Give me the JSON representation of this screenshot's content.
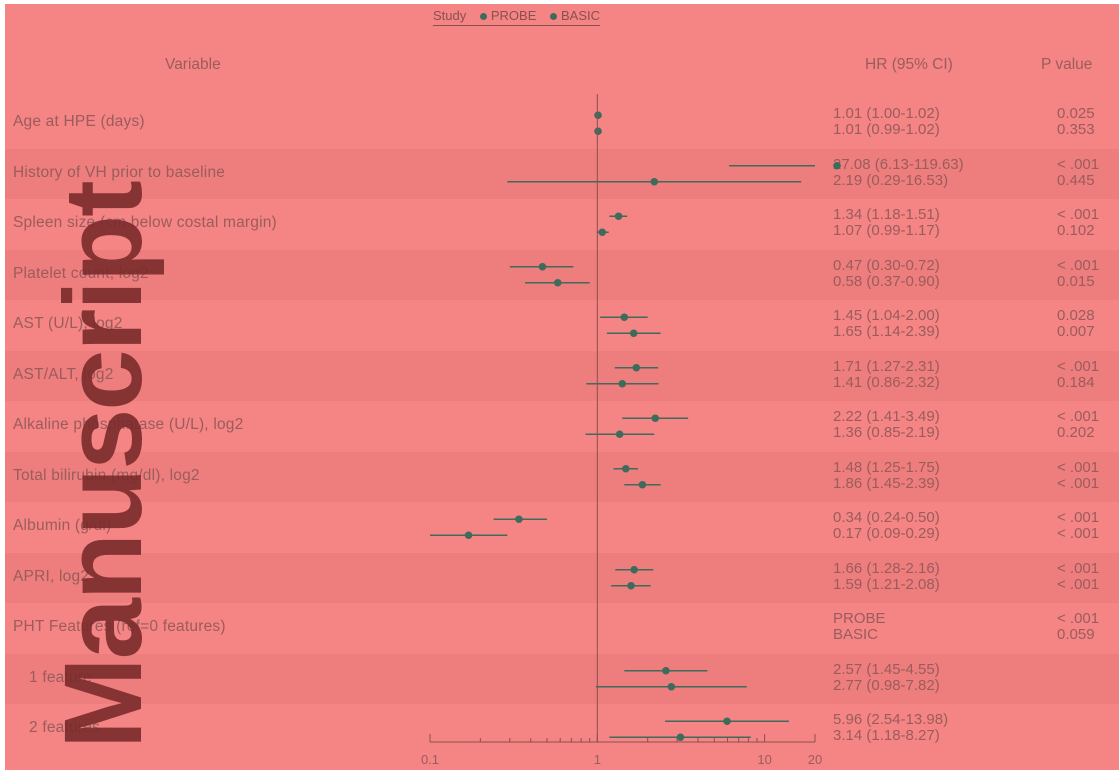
{
  "legend": {
    "title": "Study",
    "items": [
      "PROBE",
      "BASIC"
    ]
  },
  "headers": {
    "variable": "Variable",
    "hr": "HR (95% CI)",
    "pvalue": "P value"
  },
  "watermark": "Manuscript",
  "colors": {
    "background": "#f58484",
    "band": "#ee7d7d",
    "marker": "#3f6b5c",
    "text": "#9a5c5c"
  },
  "chart_data": {
    "type": "forest",
    "xscale": "log",
    "xlim": [
      0.1,
      20
    ],
    "xticks": [
      0.1,
      1,
      10,
      20
    ],
    "xtick_labels": [
      "0.1",
      "1",
      "10",
      "20"
    ],
    "reference_line": 1,
    "series": [
      {
        "name": "PROBE"
      },
      {
        "name": "BASIC"
      }
    ],
    "rows": [
      {
        "label": "Age at HPE (days)",
        "band": false,
        "estimates": [
          {
            "hr": 1.01,
            "lo": 1.0,
            "hi": 1.02,
            "text": "1.01 (1.00-1.02)",
            "p": "0.025"
          },
          {
            "hr": 1.01,
            "lo": 0.99,
            "hi": 1.02,
            "text": "1.01 (0.99-1.02)",
            "p": "0.353"
          }
        ]
      },
      {
        "label": "History of VH prior to baseline",
        "band": true,
        "estimates": [
          {
            "hr": 27.08,
            "lo": 6.13,
            "hi": 119.63,
            "text": "27.08 (6.13-119.63)",
            "p": "< .001"
          },
          {
            "hr": 2.19,
            "lo": 0.29,
            "hi": 16.53,
            "text": "2.19 (0.29-16.53)",
            "p": "0.445"
          }
        ]
      },
      {
        "label": "Spleen size (cm below costal margin)",
        "band": false,
        "estimates": [
          {
            "hr": 1.34,
            "lo": 1.18,
            "hi": 1.51,
            "text": "1.34 (1.18-1.51)",
            "p": "< .001"
          },
          {
            "hr": 1.07,
            "lo": 0.99,
            "hi": 1.17,
            "text": "1.07 (0.99-1.17)",
            "p": "0.102"
          }
        ]
      },
      {
        "label": "Platelet count, log2",
        "band": true,
        "estimates": [
          {
            "hr": 0.47,
            "lo": 0.3,
            "hi": 0.72,
            "text": "0.47 (0.30-0.72)",
            "p": "< .001"
          },
          {
            "hr": 0.58,
            "lo": 0.37,
            "hi": 0.9,
            "text": "0.58 (0.37-0.90)",
            "p": "0.015"
          }
        ]
      },
      {
        "label": "AST (U/L), log2",
        "band": false,
        "estimates": [
          {
            "hr": 1.45,
            "lo": 1.04,
            "hi": 2.0,
            "text": "1.45 (1.04-2.00)",
            "p": "0.028"
          },
          {
            "hr": 1.65,
            "lo": 1.14,
            "hi": 2.39,
            "text": "1.65 (1.14-2.39)",
            "p": "0.007"
          }
        ]
      },
      {
        "label": "AST/ALT, log2",
        "band": true,
        "estimates": [
          {
            "hr": 1.71,
            "lo": 1.27,
            "hi": 2.31,
            "text": "1.71 (1.27-2.31)",
            "p": "< .001"
          },
          {
            "hr": 1.41,
            "lo": 0.86,
            "hi": 2.32,
            "text": "1.41 (0.86-2.32)",
            "p": "0.184"
          }
        ]
      },
      {
        "label": "Alkaline phosphatase (U/L), log2",
        "band": false,
        "estimates": [
          {
            "hr": 2.22,
            "lo": 1.41,
            "hi": 3.49,
            "text": "2.22 (1.41-3.49)",
            "p": "< .001"
          },
          {
            "hr": 1.36,
            "lo": 0.85,
            "hi": 2.19,
            "text": "1.36 (0.85-2.19)",
            "p": "0.202"
          }
        ]
      },
      {
        "label": "Total bilirubin (mg/dl), log2",
        "band": true,
        "estimates": [
          {
            "hr": 1.48,
            "lo": 1.25,
            "hi": 1.75,
            "text": "1.48 (1.25-1.75)",
            "p": "< .001"
          },
          {
            "hr": 1.86,
            "lo": 1.45,
            "hi": 2.39,
            "text": "1.86 (1.45-2.39)",
            "p": "< .001"
          }
        ]
      },
      {
        "label": "Albumin (g/dl)",
        "band": false,
        "estimates": [
          {
            "hr": 0.34,
            "lo": 0.24,
            "hi": 0.5,
            "text": "0.34 (0.24-0.50)",
            "p": "< .001"
          },
          {
            "hr": 0.17,
            "lo": 0.09,
            "hi": 0.29,
            "text": "0.17 (0.09-0.29)",
            "p": "< .001"
          }
        ]
      },
      {
        "label": "APRI, log2",
        "band": true,
        "estimates": [
          {
            "hr": 1.66,
            "lo": 1.28,
            "hi": 2.16,
            "text": "1.66 (1.28-2.16)",
            "p": "< .001"
          },
          {
            "hr": 1.59,
            "lo": 1.21,
            "hi": 2.08,
            "text": "1.59 (1.21-2.08)",
            "p": "< .001"
          }
        ]
      },
      {
        "label": "PHT Features (ref=0 features)",
        "band": false,
        "estimates": [
          {
            "text": "PROBE",
            "p": "< .001"
          },
          {
            "text": "BASIC",
            "p": "0.059"
          }
        ]
      },
      {
        "label": "1 feature",
        "band": true,
        "estimates": [
          {
            "hr": 2.57,
            "lo": 1.45,
            "hi": 4.55,
            "text": "2.57 (1.45-4.55)",
            "p": ""
          },
          {
            "hr": 2.77,
            "lo": 0.98,
            "hi": 7.82,
            "text": "2.77 (0.98-7.82)",
            "p": ""
          }
        ]
      },
      {
        "label": "2 features",
        "band": false,
        "estimates": [
          {
            "hr": 5.96,
            "lo": 2.54,
            "hi": 13.98,
            "text": "5.96 (2.54-13.98)",
            "p": ""
          },
          {
            "hr": 3.14,
            "lo": 1.18,
            "hi": 8.27,
            "text": "3.14 (1.18-8.27)",
            "p": ""
          }
        ]
      }
    ]
  }
}
